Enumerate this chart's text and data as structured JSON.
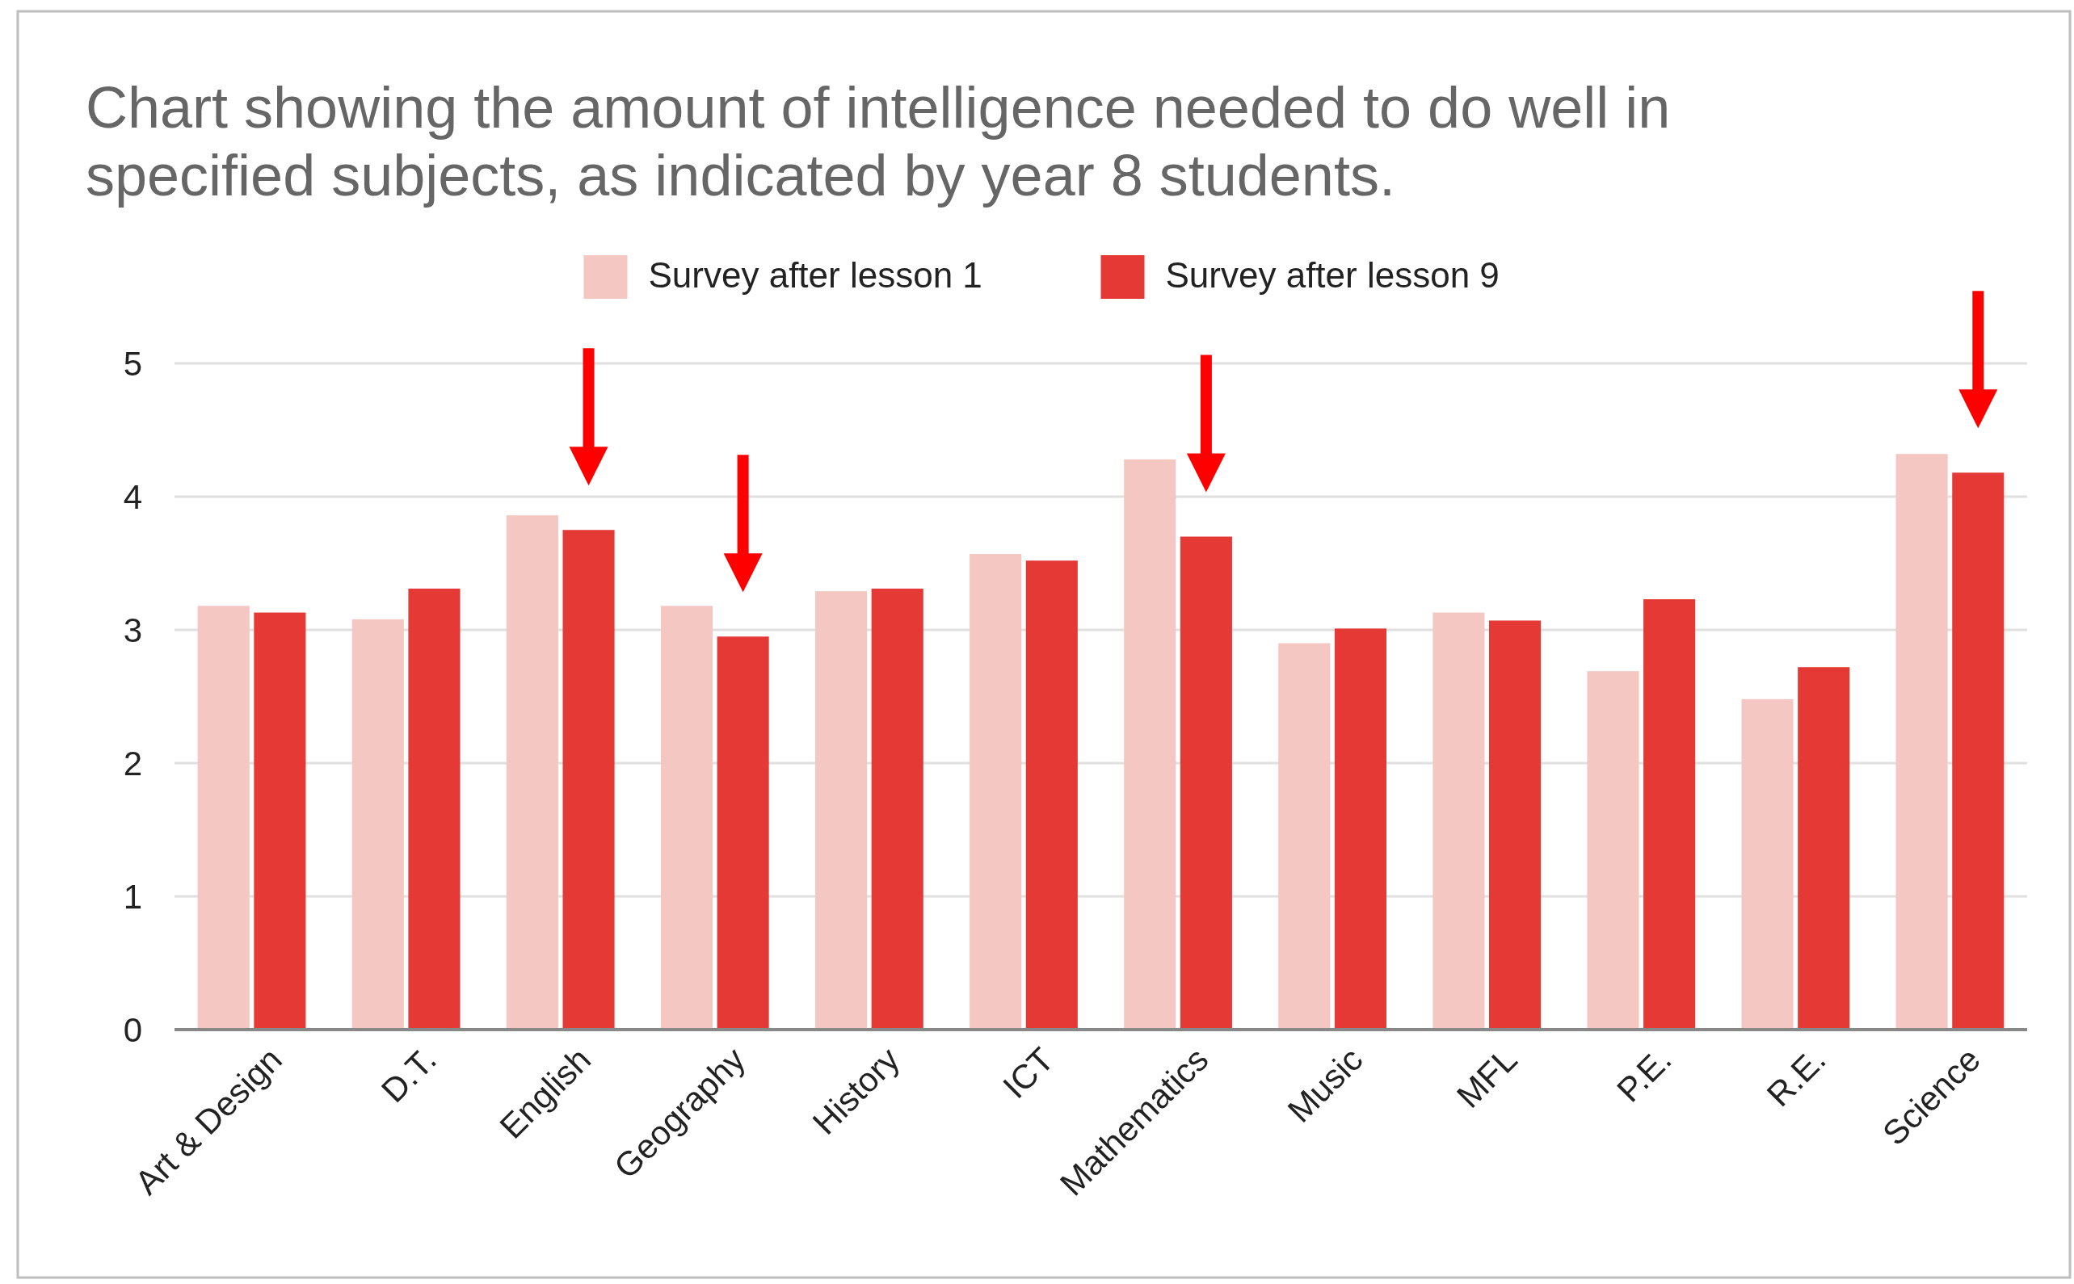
{
  "chart_data": {
    "type": "bar",
    "title": "Chart showing the amount of intelligence needed to do well in specified subjects, as indicated by year 8 students.",
    "categories": [
      "Art & Design",
      "D.T.",
      "English",
      "Geography",
      "History",
      "ICT",
      "Mathematics",
      "Music",
      "MFL",
      "P.E.",
      "R.E.",
      "Science"
    ],
    "series": [
      {
        "name": "Survey after lesson 1",
        "color": "#f4c7c3",
        "values": [
          3.18,
          3.08,
          3.86,
          3.18,
          3.29,
          3.57,
          4.28,
          2.9,
          3.13,
          2.69,
          2.48,
          4.32
        ]
      },
      {
        "name": "Survey after lesson 9",
        "color": "#e53935",
        "values": [
          3.13,
          3.31,
          3.75,
          2.95,
          3.31,
          3.52,
          3.7,
          3.01,
          3.07,
          3.23,
          2.72,
          4.18
        ]
      }
    ],
    "ylim": [
      0,
      5
    ],
    "yticks": [
      0,
      1,
      2,
      3,
      4,
      5
    ],
    "grid": "y",
    "legend": "top"
  }
}
